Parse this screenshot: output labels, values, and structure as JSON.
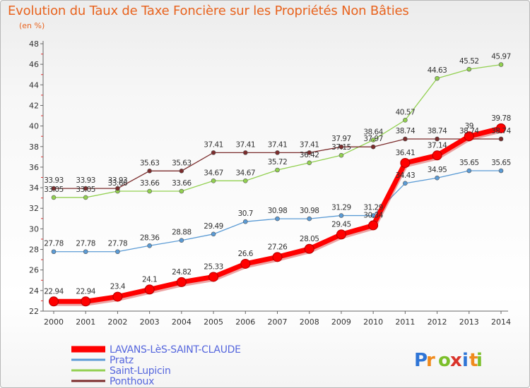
{
  "title": "Evolution du Taux de Taxe Foncière sur les Propriétés Non Bâties",
  "subtitle": "(en %)",
  "logo_text": "Proxiti",
  "chart_data": {
    "type": "line",
    "x": [
      "2000",
      "2001",
      "2002",
      "2003",
      "2004",
      "2005",
      "2006",
      "2007",
      "2008",
      "2009",
      "2010",
      "2011",
      "2012",
      "2013",
      "2014"
    ],
    "ylim": [
      22,
      48
    ],
    "yticks": [
      22,
      24,
      26,
      28,
      30,
      32,
      34,
      36,
      38,
      40,
      42,
      44,
      46,
      48
    ],
    "grid": false,
    "legend_position": "bottom-left",
    "series": [
      {
        "name": "LAVANS-LèS-SAINT-CLAUDE",
        "color": "#ff0000",
        "emphasis": true,
        "values": [
          22.94,
          22.94,
          23.4,
          24.1,
          24.82,
          25.33,
          26.6,
          27.26,
          28.05,
          29.45,
          30.34,
          36.41,
          37.14,
          39,
          39.78
        ],
        "labels": [
          "22.94",
          "22.94",
          "23.4",
          "24.1",
          "24.82",
          "25.33",
          "26.6",
          "27.26",
          "28.05",
          "29.45",
          "30.34",
          "36.41",
          "37.14",
          "39",
          "39.78"
        ]
      },
      {
        "name": "Pratz",
        "color": "#5b9bd5",
        "values": [
          27.78,
          27.78,
          27.78,
          28.36,
          28.88,
          29.49,
          30.7,
          30.98,
          30.98,
          31.29,
          31.29,
          34.43,
          34.95,
          35.65,
          35.65
        ],
        "labels": [
          "27.78",
          "27.78",
          "27.78",
          "28.36",
          "28.88",
          "29.49",
          "30.7",
          "30.98",
          "30.98",
          "31.29",
          "31.29",
          "34.43",
          "34.95",
          "35.65",
          "35.65"
        ]
      },
      {
        "name": "Saint-Lupicin",
        "color": "#92d050",
        "values": [
          33.05,
          33.05,
          33.66,
          33.66,
          33.66,
          34.67,
          34.67,
          35.72,
          36.42,
          37.15,
          38.64,
          40.57,
          44.63,
          45.52,
          45.97
        ],
        "labels": [
          "33.05",
          "33.05",
          "33.66",
          "33.66",
          "33.66",
          "34.67",
          "34.67",
          "35.72",
          "36.42",
          "37.15",
          "38.64",
          "40.57",
          "44.63",
          "45.52",
          "45.97"
        ]
      },
      {
        "name": "Ponthoux",
        "color": "#7b2c2c",
        "values": [
          33.93,
          33.93,
          33.93,
          35.63,
          35.63,
          37.41,
          37.41,
          37.41,
          37.41,
          37.97,
          37.97,
          38.74,
          38.74,
          38.74,
          38.74
        ],
        "labels": [
          "33.93",
          "33.93",
          "33.93",
          "35.63",
          "35.63",
          "37.41",
          "37.41",
          "37.41",
          "37.41",
          "37.97",
          "37.97",
          "38.74",
          "38.74",
          "38.74",
          "38.74"
        ]
      }
    ]
  }
}
